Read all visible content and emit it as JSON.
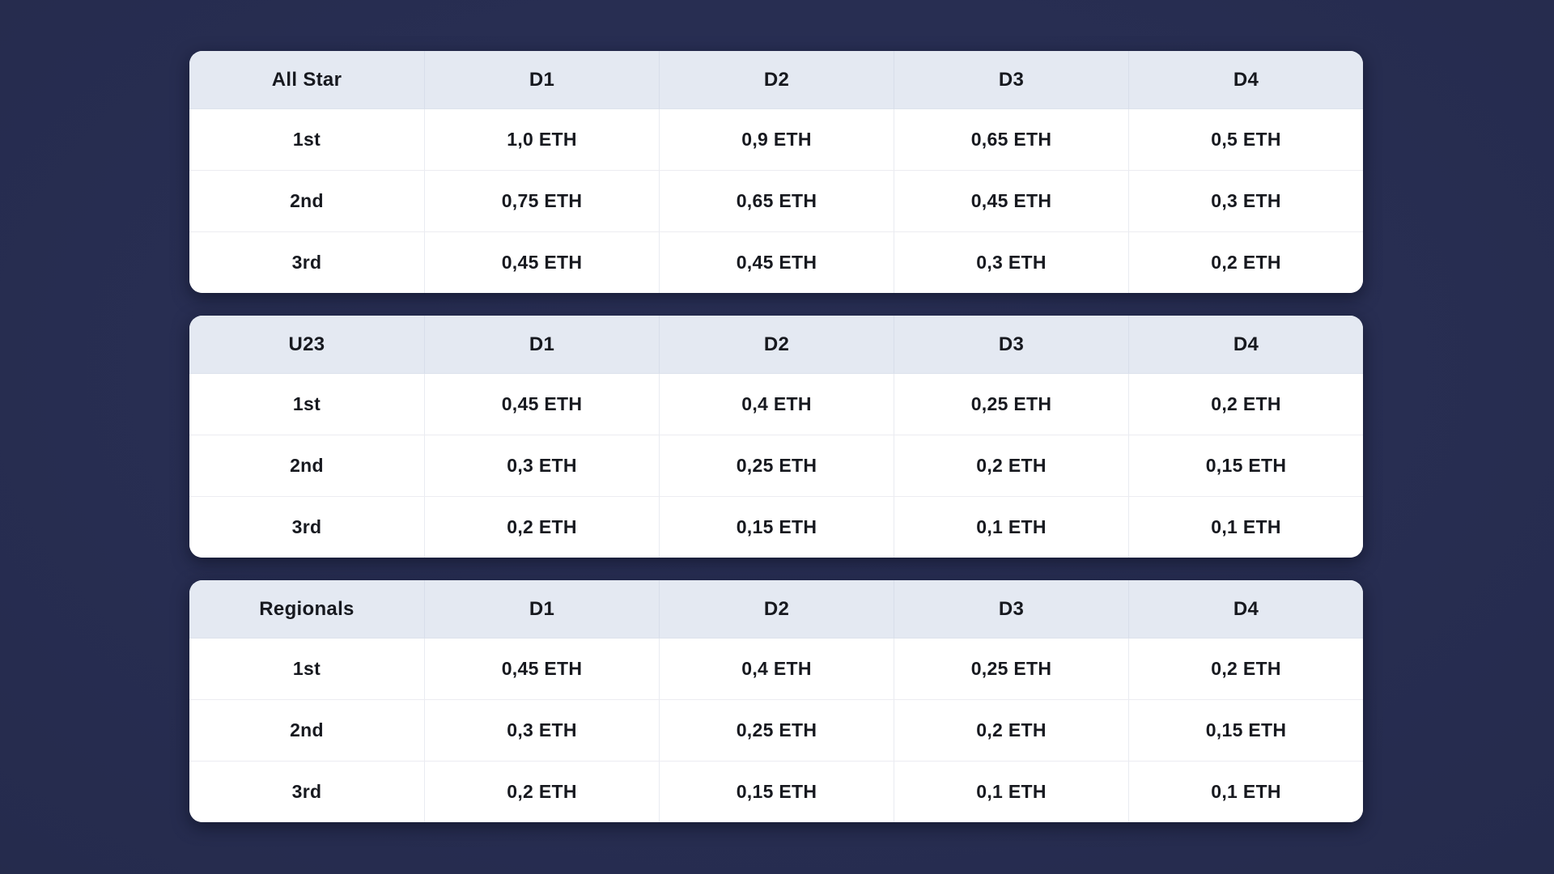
{
  "page": {
    "background_color": "#252b4d",
    "header_row_color": "#e4e9f2",
    "body_row_color": "#ffffff",
    "text_color": "#17191f",
    "currency_unit": "ETH"
  },
  "chart_data": [
    {
      "type": "table",
      "title": "All Star",
      "columns": [
        "D1",
        "D2",
        "D3",
        "D4"
      ],
      "rows": [
        [
          "1st",
          "1,0 ETH",
          "0,9 ETH",
          "0,65 ETH",
          "0,5 ETH"
        ],
        [
          "2nd",
          "0,75 ETH",
          "0,65 ETH",
          "0,45 ETH",
          "0,3 ETH"
        ],
        [
          "3rd",
          "0,45 ETH",
          "0,45 ETH",
          "0,3 ETH",
          "0,2 ETH"
        ]
      ]
    },
    {
      "type": "table",
      "title": "U23",
      "columns": [
        "D1",
        "D2",
        "D3",
        "D4"
      ],
      "rows": [
        [
          "1st",
          "0,45 ETH",
          "0,4 ETH",
          "0,25 ETH",
          "0,2 ETH"
        ],
        [
          "2nd",
          "0,3 ETH",
          "0,25 ETH",
          "0,2 ETH",
          "0,15 ETH"
        ],
        [
          "3rd",
          "0,2 ETH",
          "0,15 ETH",
          "0,1 ETH",
          "0,1 ETH"
        ]
      ]
    },
    {
      "type": "table",
      "title": "Regionals",
      "columns": [
        "D1",
        "D2",
        "D3",
        "D4"
      ],
      "rows": [
        [
          "1st",
          "0,45 ETH",
          "0,4 ETH",
          "0,25 ETH",
          "0,2 ETH"
        ],
        [
          "2nd",
          "0,3 ETH",
          "0,25 ETH",
          "0,2 ETH",
          "0,15 ETH"
        ],
        [
          "3rd",
          "0,2 ETH",
          "0,15 ETH",
          "0,1 ETH",
          "0,1 ETH"
        ]
      ]
    }
  ]
}
